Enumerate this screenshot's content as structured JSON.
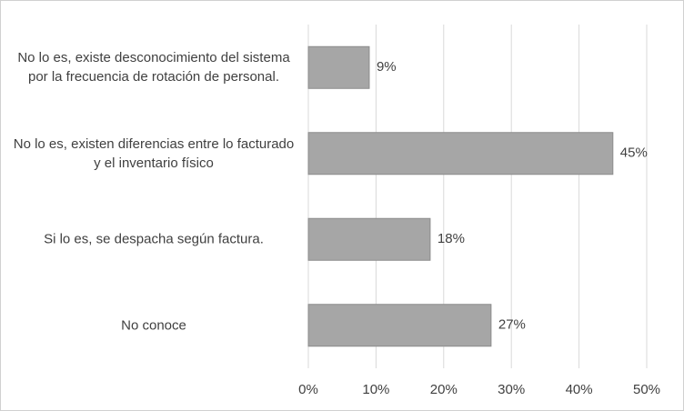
{
  "chart_data": {
    "type": "barh",
    "categories": [
      "No lo es, existe desconocimiento del sistema por la frecuencia de rotación de personal.",
      "No lo es, existen diferencias entre lo facturado y el  inventario físico",
      "Si lo es, se despacha según factura.",
      "No conoce"
    ],
    "values": [
      9,
      45,
      18,
      27
    ],
    "value_labels": [
      "9%",
      "45%",
      "18%",
      "27%"
    ],
    "color": "#a6a6a6",
    "xlim": [
      0,
      50
    ],
    "xticks": [
      {
        "value": 0,
        "label": "0%"
      },
      {
        "value": 10,
        "label": "10%"
      },
      {
        "value": 20,
        "label": "20%"
      },
      {
        "value": 30,
        "label": "30%"
      },
      {
        "value": 40,
        "label": "40%"
      },
      {
        "value": 50,
        "label": "50%"
      }
    ],
    "grid": true
  }
}
